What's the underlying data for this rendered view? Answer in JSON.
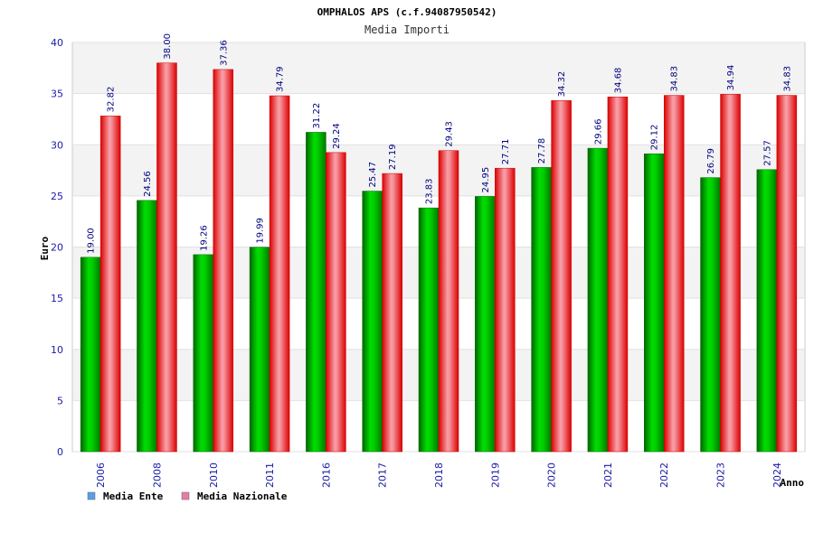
{
  "chart_data": {
    "type": "bar",
    "title": "OMPHALOS APS (c.f.94087950542)",
    "subtitle": "Media Importi",
    "xlabel": "Anno",
    "ylabel": "Euro",
    "ylim": [
      0,
      40
    ],
    "yticks": [
      0,
      5,
      10,
      15,
      20,
      25,
      30,
      35,
      40
    ],
    "grid": true,
    "legend_position": "bottom-left",
    "categories": [
      "2006",
      "2008",
      "2010",
      "2011",
      "2016",
      "2017",
      "2018",
      "2019",
      "2020",
      "2021",
      "2022",
      "2023",
      "2024"
    ],
    "series": [
      {
        "name": "Media Ente",
        "color": "#00aa00",
        "legend_color": "#5a9ee8",
        "values": [
          19.0,
          24.56,
          19.26,
          19.99,
          31.22,
          25.47,
          23.83,
          24.95,
          27.78,
          29.66,
          29.12,
          26.79,
          27.57
        ],
        "labels": [
          "19.00",
          "24.56",
          "19.26",
          "19.99",
          "31.22",
          "25.47",
          "23.83",
          "24.95",
          "27.78",
          "29.66",
          "29.12",
          "26.79",
          "27.57"
        ]
      },
      {
        "name": "Media Nazionale",
        "color": "#ee0000",
        "legend_color": "#e87aa8",
        "values": [
          32.82,
          38.0,
          37.36,
          34.79,
          29.24,
          27.19,
          29.43,
          27.71,
          34.32,
          34.68,
          34.83,
          34.94,
          34.83
        ],
        "labels": [
          "32.82",
          "38.00",
          "37.36",
          "34.79",
          "29.24",
          "27.19",
          "29.43",
          "27.71",
          "34.32",
          "34.68",
          "34.83",
          "34.94",
          "34.83"
        ]
      }
    ]
  }
}
